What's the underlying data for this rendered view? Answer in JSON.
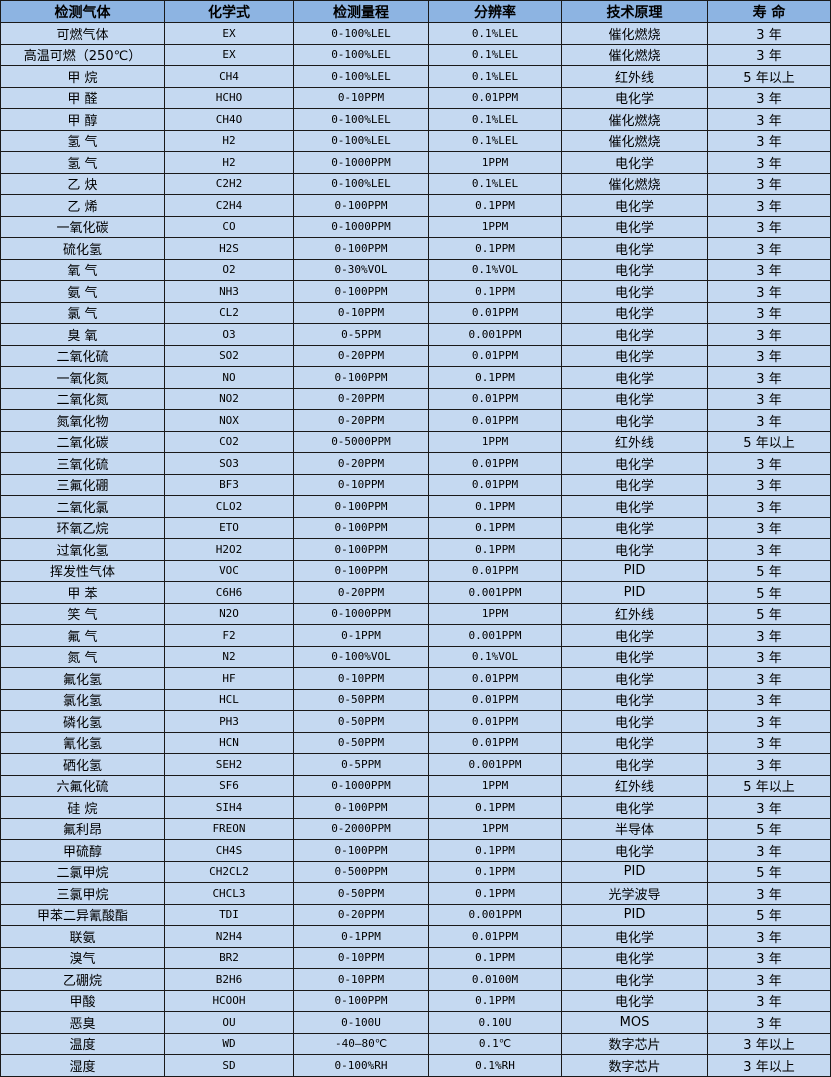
{
  "colors": {
    "header_bg": "#8db4e2",
    "row_bg": "#c5d9f1",
    "border": "#1a1a1a"
  },
  "headers": [
    "检测气体",
    "化学式",
    "检测量程",
    "分辨率",
    "技术原理",
    "寿 命"
  ],
  "rows": [
    [
      "可燃气体",
      "EX",
      "0-100%LEL",
      "0.1%LEL",
      "催化燃烧",
      "3 年"
    ],
    [
      "高温可燃（250℃）",
      "EX",
      "0-100%LEL",
      "0.1%LEL",
      "催化燃烧",
      "3 年"
    ],
    [
      "甲 烷",
      "CH4",
      "0-100%LEL",
      "0.1%LEL",
      "红外线",
      "5 年以上"
    ],
    [
      "甲 醛",
      "HCHO",
      "0-10PPM",
      "0.01PPM",
      "电化学",
      "3 年"
    ],
    [
      "甲 醇",
      "CH4O",
      "0-100%LEL",
      "0.1%LEL",
      "催化燃烧",
      "3 年"
    ],
    [
      "氢 气",
      "H2",
      "0-100%LEL",
      "0.1%LEL",
      "催化燃烧",
      "3 年"
    ],
    [
      "氢 气",
      "H2",
      "0-1000PPM",
      "1PPM",
      "电化学",
      "3 年"
    ],
    [
      "乙 炔",
      "C2H2",
      "0-100%LEL",
      "0.1%LEL",
      "催化燃烧",
      "3 年"
    ],
    [
      "乙 烯",
      "C2H4",
      "0-100PPM",
      "0.1PPM",
      "电化学",
      "3 年"
    ],
    [
      "一氧化碳",
      "CO",
      "0-1000PPM",
      "1PPM",
      "电化学",
      "3 年"
    ],
    [
      "硫化氢",
      "H2S",
      "0-100PPM",
      "0.1PPM",
      "电化学",
      "3 年"
    ],
    [
      "氧 气",
      "O2",
      "0-30%VOL",
      "0.1%VOL",
      "电化学",
      "3 年"
    ],
    [
      "氨 气",
      "NH3",
      "0-100PPM",
      "0.1PPM",
      "电化学",
      "3 年"
    ],
    [
      "氯 气",
      "CL2",
      "0-10PPM",
      "0.01PPM",
      "电化学",
      "3 年"
    ],
    [
      "臭 氧",
      "O3",
      "0-5PPM",
      "0.001PPM",
      "电化学",
      "3 年"
    ],
    [
      "二氧化硫",
      "SO2",
      "0-20PPM",
      "0.01PPM",
      "电化学",
      "3 年"
    ],
    [
      "一氧化氮",
      "NO",
      "0-100PPM",
      "0.1PPM",
      "电化学",
      "3 年"
    ],
    [
      "二氧化氮",
      "NO2",
      "0-20PPM",
      "0.01PPM",
      "电化学",
      "3 年"
    ],
    [
      "氮氧化物",
      "NOX",
      "0-20PPM",
      "0.01PPM",
      "电化学",
      "3 年"
    ],
    [
      "二氧化碳",
      "CO2",
      "0-5000PPM",
      "1PPM",
      "红外线",
      "5 年以上"
    ],
    [
      "三氧化硫",
      "SO3",
      "0-20PPM",
      "0.01PPM",
      "电化学",
      "3 年"
    ],
    [
      "三氟化硼",
      "BF3",
      "0-10PPM",
      "0.01PPM",
      "电化学",
      "3 年"
    ],
    [
      "二氧化氯",
      "CLO2",
      "0-100PPM",
      "0.1PPM",
      "电化学",
      "3 年"
    ],
    [
      "环氧乙烷",
      "ETO",
      "0-100PPM",
      "0.1PPM",
      "电化学",
      "3 年"
    ],
    [
      "过氧化氢",
      "H2O2",
      "0-100PPM",
      "0.1PPM",
      "电化学",
      "3 年"
    ],
    [
      "挥发性气体",
      "VOC",
      "0-100PPM",
      "0.01PPM",
      "PID",
      "5 年"
    ],
    [
      "甲 苯",
      "C6H6",
      "0-20PPM",
      "0.001PPM",
      "PID",
      "5 年"
    ],
    [
      "笑 气",
      "N2O",
      "0-1000PPM",
      "1PPM",
      "红外线",
      "5 年"
    ],
    [
      "氟 气",
      "F2",
      "0-1PPM",
      "0.001PPM",
      "电化学",
      "3 年"
    ],
    [
      "氮 气",
      "N2",
      "0-100%VOL",
      "0.1%VOL",
      "电化学",
      "3 年"
    ],
    [
      "氟化氢",
      "HF",
      "0-10PPM",
      "0.01PPM",
      "电化学",
      "3 年"
    ],
    [
      "氯化氢",
      "HCL",
      "0-50PPM",
      "0.01PPM",
      "电化学",
      "3 年"
    ],
    [
      "磷化氢",
      "PH3",
      "0-50PPM",
      "0.01PPM",
      "电化学",
      "3 年"
    ],
    [
      "氰化氢",
      "HCN",
      "0-50PPM",
      "0.01PPM",
      "电化学",
      "3 年"
    ],
    [
      "硒化氢",
      "SEH2",
      "0-5PPM",
      "0.001PPM",
      "电化学",
      "3 年"
    ],
    [
      "六氟化硫",
      "SF6",
      "0-1000PPM",
      "1PPM",
      "红外线",
      "5 年以上"
    ],
    [
      "硅 烷",
      "SIH4",
      "0-100PPM",
      "0.1PPM",
      "电化学",
      "3 年"
    ],
    [
      "氟利昂",
      "FREON",
      "0-2000PPM",
      "1PPM",
      "半导体",
      "5 年"
    ],
    [
      "甲硫醇",
      "CH4S",
      "0-100PPM",
      "0.1PPM",
      "电化学",
      "3 年"
    ],
    [
      "二氯甲烷",
      "CH2CL2",
      "0-500PPM",
      "0.1PPM",
      "PID",
      "5 年"
    ],
    [
      "三氯甲烷",
      "CHCL3",
      "0-50PPM",
      "0.1PPM",
      "光学波导",
      "3 年"
    ],
    [
      "甲苯二异氰酸酯",
      "TDI",
      "0-20PPM",
      "0.001PPM",
      "PID",
      "5 年"
    ],
    [
      "联氨",
      "N2H4",
      "0-1PPM",
      "0.01PPM",
      "电化学",
      "3 年"
    ],
    [
      "溴气",
      "BR2",
      "0-10PPM",
      "0.1PPM",
      "电化学",
      "3 年"
    ],
    [
      "乙硼烷",
      "B2H6",
      "0-10PPM",
      "0.0100M",
      "电化学",
      "3 年"
    ],
    [
      "甲酸",
      "HCOOH",
      "0-100PPM",
      "0.1PPM",
      "电化学",
      "3 年"
    ],
    [
      "恶臭",
      "OU",
      "0-100U",
      "0.10U",
      "MOS",
      "3 年"
    ],
    [
      "温度",
      "WD",
      "-40—80℃",
      "0.1℃",
      "数字芯片",
      "3 年以上"
    ],
    [
      "湿度",
      "SD",
      "0-100%RH",
      "0.1%RH",
      "数字芯片",
      "3 年以上"
    ]
  ]
}
